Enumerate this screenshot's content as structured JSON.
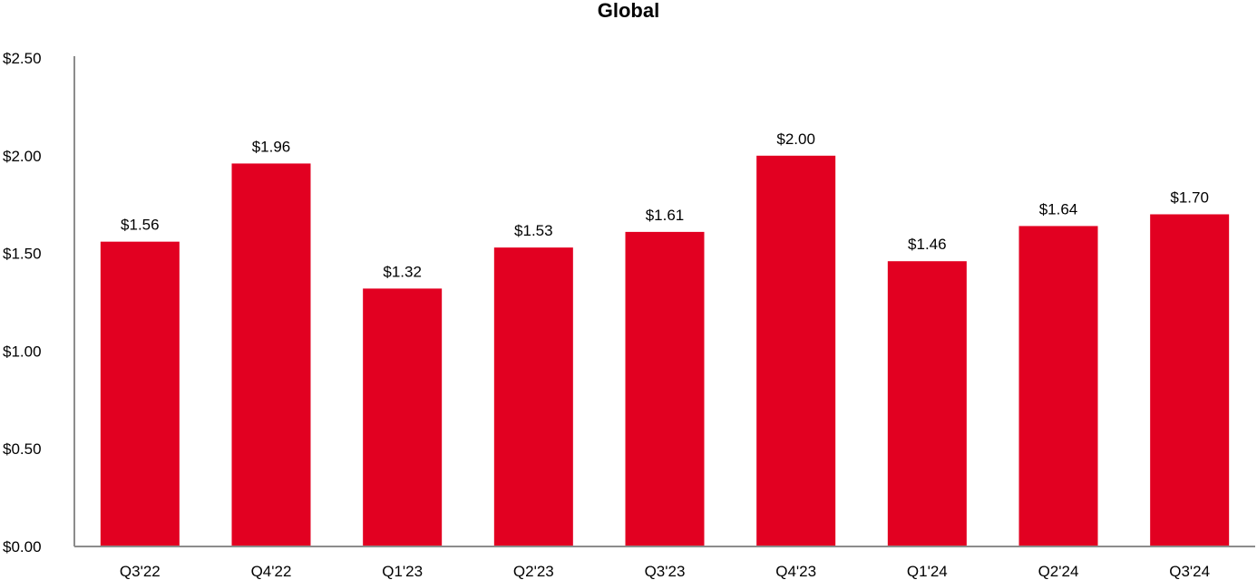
{
  "chart_data": {
    "type": "bar",
    "title": "Global",
    "xlabel": "",
    "ylabel": "",
    "categories": [
      "Q3'22",
      "Q4'22",
      "Q1'23",
      "Q2'23",
      "Q3'23",
      "Q4'23",
      "Q1'24",
      "Q2'24",
      "Q3'24"
    ],
    "values": [
      1.56,
      1.96,
      1.32,
      1.53,
      1.61,
      2.0,
      1.46,
      1.64,
      1.7
    ],
    "data_labels": [
      "$1.56",
      "$1.96",
      "$1.32",
      "$1.53",
      "$1.61",
      "$2.00",
      "$1.46",
      "$1.64",
      "$1.70"
    ],
    "ylim": [
      0,
      2.5
    ],
    "yticks": [
      0,
      0.5,
      1.0,
      1.5,
      2.0,
      2.5
    ],
    "ytick_labels": [
      "$0.00",
      "$0.50",
      "$1.00",
      "$1.50",
      "$2.00",
      "$2.50"
    ],
    "grid": false,
    "legend": "none",
    "colors": {
      "bar": "#e20021",
      "axis": "#8c8c8c",
      "text": "#000000"
    }
  }
}
